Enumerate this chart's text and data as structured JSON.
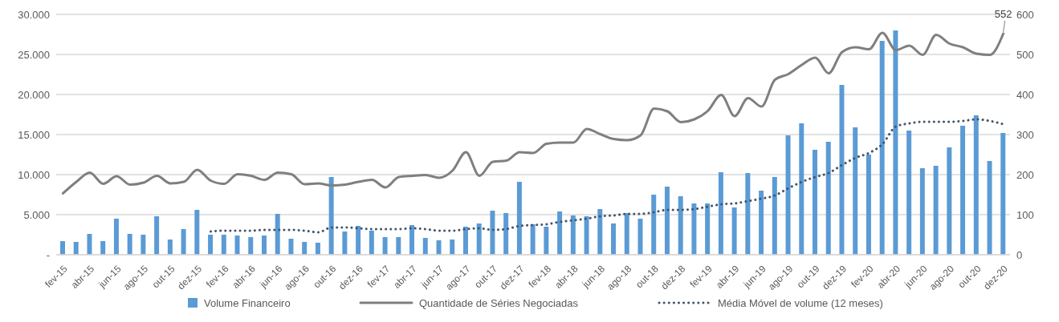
{
  "chart_data": {
    "type": "bar",
    "categories": [
      "fev-15",
      null,
      "abr-15",
      null,
      "jun-15",
      null,
      "ago-15",
      null,
      "out-15",
      null,
      "dez-15",
      null,
      "fev-16",
      null,
      "abr-16",
      null,
      "jun-16",
      null,
      "ago-16",
      null,
      "out-16",
      null,
      "dez-16",
      null,
      "fev-17",
      null,
      "abr-17",
      null,
      "jun-17",
      null,
      "ago-17",
      null,
      "out-17",
      null,
      "dez-17",
      null,
      "fev-18",
      null,
      "abr-18",
      null,
      "jun-18",
      null,
      "ago-18",
      null,
      "out-18",
      null,
      "dez-18",
      null,
      "fev-19",
      null,
      "abr-19",
      null,
      "jun-19",
      null,
      "ago-19",
      null,
      "out-19",
      null,
      "dez-19",
      null,
      "fev-20",
      null,
      "abr-20",
      null,
      "jun-20",
      null,
      "ago-20",
      null,
      "out-20",
      null,
      "dez-20"
    ],
    "series": [
      {
        "name": "Volume Financeiro",
        "color": "#5b9bd5",
        "values": [
          1700,
          1600,
          2600,
          1700,
          4500,
          2600,
          2500,
          4800,
          1900,
          3200,
          5600,
          2500,
          2500,
          2400,
          2200,
          2400,
          5100,
          2000,
          1600,
          1500,
          9700,
          2900,
          3600,
          3000,
          2200,
          2200,
          3700,
          2100,
          1800,
          1900,
          3500,
          3900,
          5500,
          5200,
          9100,
          3800,
          3500,
          5400,
          4900,
          4800,
          5700,
          3900,
          5200,
          4500,
          7500,
          8500,
          7300,
          6400,
          6400,
          10300,
          5900,
          10200,
          8000,
          9700,
          14900,
          16400,
          13100,
          14100,
          21200,
          15900,
          12500,
          26700,
          28000,
          15500,
          10800,
          11100,
          13400,
          16100,
          17400,
          11700,
          15200
        ]
      },
      {
        "name": "Quantidade de Séries Negociadas",
        "type": "line",
        "axis": "y2",
        "color": "#7f7f7f",
        "line_style": "solid",
        "values": [
          153,
          182,
          205,
          177,
          196,
          175,
          180,
          197,
          178,
          182,
          212,
          185,
          177,
          201,
          197,
          187,
          205,
          201,
          176,
          178,
          173,
          175,
          182,
          187,
          168,
          194,
          197,
          199,
          192,
          210,
          256,
          197,
          232,
          235,
          256,
          254,
          277,
          280,
          280,
          314,
          301,
          289,
          286,
          298,
          365,
          358,
          331,
          338,
          359,
          399,
          346,
          391,
          370,
          437,
          451,
          474,
          492,
          453,
          506,
          518,
          513,
          554,
          511,
          522,
          499,
          549,
          527,
          518,
          502,
          499,
          552
        ]
      },
      {
        "name": "Média Móvel de volume (12 meses)",
        "type": "line",
        "color": "#44546a",
        "line_style": "dotted",
        "values": [
          null,
          null,
          null,
          null,
          null,
          null,
          null,
          null,
          null,
          null,
          null,
          2900,
          3000,
          3000,
          3000,
          3100,
          3100,
          3100,
          3000,
          2800,
          3400,
          3400,
          3300,
          3200,
          3200,
          3200,
          3300,
          3200,
          3000,
          3000,
          3200,
          3300,
          3100,
          3200,
          3600,
          3700,
          3800,
          4100,
          4300,
          4500,
          4800,
          4900,
          5100,
          5100,
          5300,
          5600,
          5600,
          5700,
          6000,
          6300,
          6400,
          6700,
          7000,
          7400,
          8300,
          9100,
          9700,
          10200,
          11200,
          12100,
          12700,
          13800,
          16000,
          16400,
          16600,
          16600,
          16600,
          16700,
          16900,
          16700,
          16300
        ]
      }
    ],
    "ylim": [
      0,
      30000
    ],
    "yticks": [
      {
        "value": 0,
        "label": "-"
      },
      {
        "value": 5000,
        "label": "5.000"
      },
      {
        "value": 10000,
        "label": "10.000"
      },
      {
        "value": 15000,
        "label": "15.000"
      },
      {
        "value": 20000,
        "label": "20.000"
      },
      {
        "value": 25000,
        "label": "25.000"
      },
      {
        "value": 30000,
        "label": "30.000"
      }
    ],
    "y2lim": [
      0,
      600
    ],
    "y2ticks": [
      0,
      100,
      200,
      300,
      400,
      500,
      600
    ],
    "annotations": [
      "552"
    ],
    "grid": "y",
    "legend": "bottom",
    "marker": "none"
  }
}
